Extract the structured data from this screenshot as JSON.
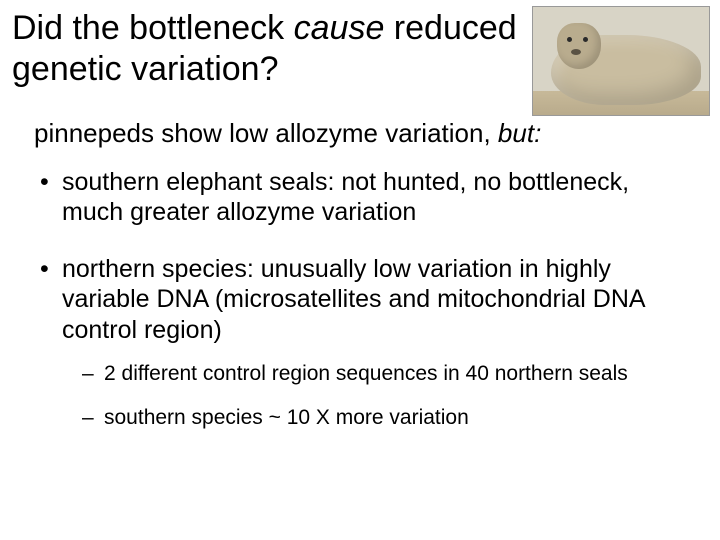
{
  "title": {
    "part1": "Did the bottleneck ",
    "italic1": "cause",
    "part2": " reduced genetic variation?"
  },
  "subhead": {
    "part1": "pinnepeds show low allozyme variation, ",
    "italic1": "but:"
  },
  "bullets": [
    "southern elephant seals: not hunted, no bottleneck, much greater allozyme variation",
    "northern species: unusually low variation in highly variable DNA (microsatellites and mitochondrial DNA control region)"
  ],
  "subs": [
    "2 different control region sequences in 40 northern seals",
    "southern species ~ 10 X more variation"
  ],
  "image": {
    "alt": "elephant-seal-photo"
  }
}
